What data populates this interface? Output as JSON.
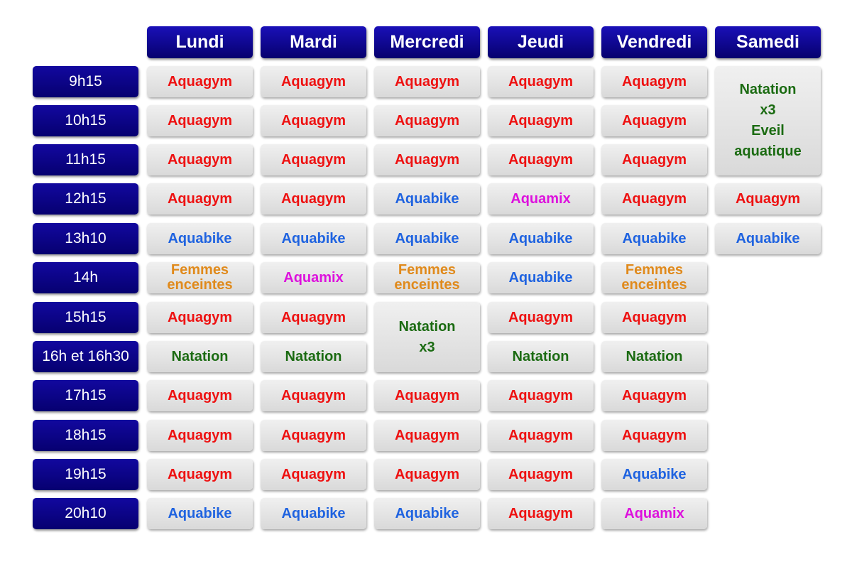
{
  "colors": {
    "aquagym": "#ee1111",
    "aquabike": "#1f63e0",
    "aquamix": "#dd11dd",
    "femmes": "#e08a1c",
    "natation": "#1b6b12",
    "header_bg": "#0a0296",
    "slot_bg": "#e4e4e4"
  },
  "days": [
    "Lundi",
    "Mardi",
    "Mercredi",
    "Jeudi",
    "Vendredi",
    "Samedi"
  ],
  "times": [
    "9h15",
    "10h15",
    "11h15",
    "12h15",
    "13h10",
    "14h",
    "15h15",
    "16h et 16h30",
    "17h15",
    "18h15",
    "19h15",
    "20h10"
  ],
  "activities": {
    "aquagym": "Aquagym",
    "aquabike": "Aquabike",
    "aquamix": "Aquamix",
    "femmes": "Femmes\nenceintes",
    "natation": "Natation",
    "natation3": "Natation\nx3",
    "samedi_block": "Natation\nx3\nEveil\naquatique"
  },
  "slots": [
    {
      "day": 0,
      "row": 0,
      "span": 1,
      "activity": "aquagym"
    },
    {
      "day": 0,
      "row": 1,
      "span": 1,
      "activity": "aquagym"
    },
    {
      "day": 0,
      "row": 2,
      "span": 1,
      "activity": "aquagym"
    },
    {
      "day": 0,
      "row": 3,
      "span": 1,
      "activity": "aquagym"
    },
    {
      "day": 0,
      "row": 4,
      "span": 1,
      "activity": "aquabike"
    },
    {
      "day": 0,
      "row": 5,
      "span": 1,
      "activity": "femmes"
    },
    {
      "day": 0,
      "row": 6,
      "span": 1,
      "activity": "aquagym"
    },
    {
      "day": 0,
      "row": 7,
      "span": 1,
      "activity": "natation"
    },
    {
      "day": 0,
      "row": 8,
      "span": 1,
      "activity": "aquagym"
    },
    {
      "day": 0,
      "row": 9,
      "span": 1,
      "activity": "aquagym"
    },
    {
      "day": 0,
      "row": 10,
      "span": 1,
      "activity": "aquagym"
    },
    {
      "day": 0,
      "row": 11,
      "span": 1,
      "activity": "aquabike"
    },
    {
      "day": 1,
      "row": 0,
      "span": 1,
      "activity": "aquagym"
    },
    {
      "day": 1,
      "row": 1,
      "span": 1,
      "activity": "aquagym"
    },
    {
      "day": 1,
      "row": 2,
      "span": 1,
      "activity": "aquagym"
    },
    {
      "day": 1,
      "row": 3,
      "span": 1,
      "activity": "aquagym"
    },
    {
      "day": 1,
      "row": 4,
      "span": 1,
      "activity": "aquabike"
    },
    {
      "day": 1,
      "row": 5,
      "span": 1,
      "activity": "aquamix"
    },
    {
      "day": 1,
      "row": 6,
      "span": 1,
      "activity": "aquagym"
    },
    {
      "day": 1,
      "row": 7,
      "span": 1,
      "activity": "natation"
    },
    {
      "day": 1,
      "row": 8,
      "span": 1,
      "activity": "aquagym"
    },
    {
      "day": 1,
      "row": 9,
      "span": 1,
      "activity": "aquagym"
    },
    {
      "day": 1,
      "row": 10,
      "span": 1,
      "activity": "aquagym"
    },
    {
      "day": 1,
      "row": 11,
      "span": 1,
      "activity": "aquabike"
    },
    {
      "day": 2,
      "row": 0,
      "span": 1,
      "activity": "aquagym"
    },
    {
      "day": 2,
      "row": 1,
      "span": 1,
      "activity": "aquagym"
    },
    {
      "day": 2,
      "row": 2,
      "span": 1,
      "activity": "aquagym"
    },
    {
      "day": 2,
      "row": 3,
      "span": 1,
      "activity": "aquabike"
    },
    {
      "day": 2,
      "row": 4,
      "span": 1,
      "activity": "aquabike"
    },
    {
      "day": 2,
      "row": 5,
      "span": 1,
      "activity": "femmes"
    },
    {
      "day": 2,
      "row": 6,
      "span": 2,
      "activity": "natation3"
    },
    {
      "day": 2,
      "row": 8,
      "span": 1,
      "activity": "aquagym"
    },
    {
      "day": 2,
      "row": 9,
      "span": 1,
      "activity": "aquagym"
    },
    {
      "day": 2,
      "row": 10,
      "span": 1,
      "activity": "aquagym"
    },
    {
      "day": 2,
      "row": 11,
      "span": 1,
      "activity": "aquabike"
    },
    {
      "day": 3,
      "row": 0,
      "span": 1,
      "activity": "aquagym"
    },
    {
      "day": 3,
      "row": 1,
      "span": 1,
      "activity": "aquagym"
    },
    {
      "day": 3,
      "row": 2,
      "span": 1,
      "activity": "aquagym"
    },
    {
      "day": 3,
      "row": 3,
      "span": 1,
      "activity": "aquamix"
    },
    {
      "day": 3,
      "row": 4,
      "span": 1,
      "activity": "aquabike"
    },
    {
      "day": 3,
      "row": 5,
      "span": 1,
      "activity": "aquabike"
    },
    {
      "day": 3,
      "row": 6,
      "span": 1,
      "activity": "aquagym"
    },
    {
      "day": 3,
      "row": 7,
      "span": 1,
      "activity": "natation"
    },
    {
      "day": 3,
      "row": 8,
      "span": 1,
      "activity": "aquagym"
    },
    {
      "day": 3,
      "row": 9,
      "span": 1,
      "activity": "aquagym"
    },
    {
      "day": 3,
      "row": 10,
      "span": 1,
      "activity": "aquagym"
    },
    {
      "day": 3,
      "row": 11,
      "span": 1,
      "activity": "aquagym"
    },
    {
      "day": 4,
      "row": 0,
      "span": 1,
      "activity": "aquagym"
    },
    {
      "day": 4,
      "row": 1,
      "span": 1,
      "activity": "aquagym"
    },
    {
      "day": 4,
      "row": 2,
      "span": 1,
      "activity": "aquagym"
    },
    {
      "day": 4,
      "row": 3,
      "span": 1,
      "activity": "aquagym"
    },
    {
      "day": 4,
      "row": 4,
      "span": 1,
      "activity": "aquabike"
    },
    {
      "day": 4,
      "row": 5,
      "span": 1,
      "activity": "femmes"
    },
    {
      "day": 4,
      "row": 6,
      "span": 1,
      "activity": "aquagym"
    },
    {
      "day": 4,
      "row": 7,
      "span": 1,
      "activity": "natation"
    },
    {
      "day": 4,
      "row": 8,
      "span": 1,
      "activity": "aquagym"
    },
    {
      "day": 4,
      "row": 9,
      "span": 1,
      "activity": "aquagym"
    },
    {
      "day": 4,
      "row": 10,
      "span": 1,
      "activity": "aquabike"
    },
    {
      "day": 4,
      "row": 11,
      "span": 1,
      "activity": "aquamix"
    },
    {
      "day": 5,
      "row": 0,
      "span": 3,
      "activity": "samedi_block"
    },
    {
      "day": 5,
      "row": 3,
      "span": 1,
      "activity": "aquagym"
    },
    {
      "day": 5,
      "row": 4,
      "span": 1,
      "activity": "aquabike"
    }
  ]
}
